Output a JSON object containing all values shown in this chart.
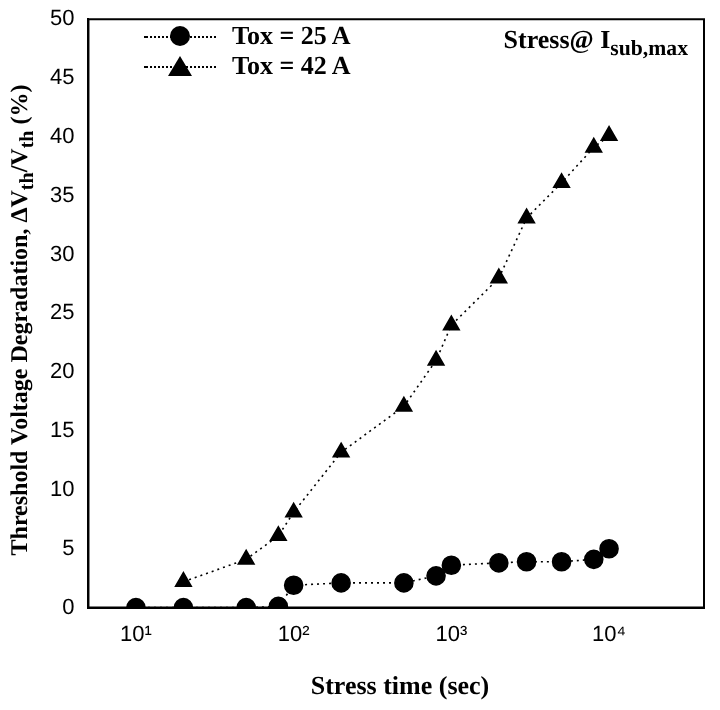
{
  "chart_data": {
    "type": "line",
    "xlabel": "Stress time (sec)",
    "ylabel": "Threshold Voltage Degradation, ΔV$_{th}$/V$_{th}$ (%)",
    "annotations": [
      "Stress@ I$_{sub,max}$"
    ],
    "log": "x",
    "xlim": [
      5,
      40000
    ],
    "xticks": [
      {
        "value": 10,
        "label": "10¹"
      },
      {
        "value": 100,
        "label": "10²"
      },
      {
        "value": 1000,
        "label": "10³"
      },
      {
        "value": 10000,
        "label": "10⁴"
      }
    ],
    "ylim": [
      0,
      50
    ],
    "yticks": [
      0,
      5,
      10,
      15,
      20,
      25,
      30,
      35,
      40,
      45,
      50
    ],
    "grid": false,
    "legend": "top left",
    "line_style": "dotted",
    "series": [
      {
        "name": "Tox = 25 A",
        "color": "#000000",
        "marker": "circle",
        "x": [
          10,
          20,
          50,
          80,
          100,
          200,
          500,
          800,
          1000,
          2000,
          3000,
          5000,
          8000,
          10000
        ],
        "values": [
          0,
          0,
          0,
          0.1,
          1.9,
          2.1,
          2.1,
          2.7,
          3.6,
          3.8,
          3.9,
          3.9,
          4.1,
          5
        ]
      },
      {
        "name": "Tox = 42 A",
        "color": "#000000",
        "marker": "triangle",
        "x": [
          20,
          50,
          80,
          100,
          200,
          500,
          800,
          1000,
          2000,
          3000,
          5000,
          8000,
          10000
        ],
        "values": [
          2.2,
          4.1,
          6.1,
          8.1,
          13.2,
          17.1,
          21,
          24,
          28,
          33.1,
          36.1,
          39.1,
          40.1
        ]
      }
    ]
  }
}
